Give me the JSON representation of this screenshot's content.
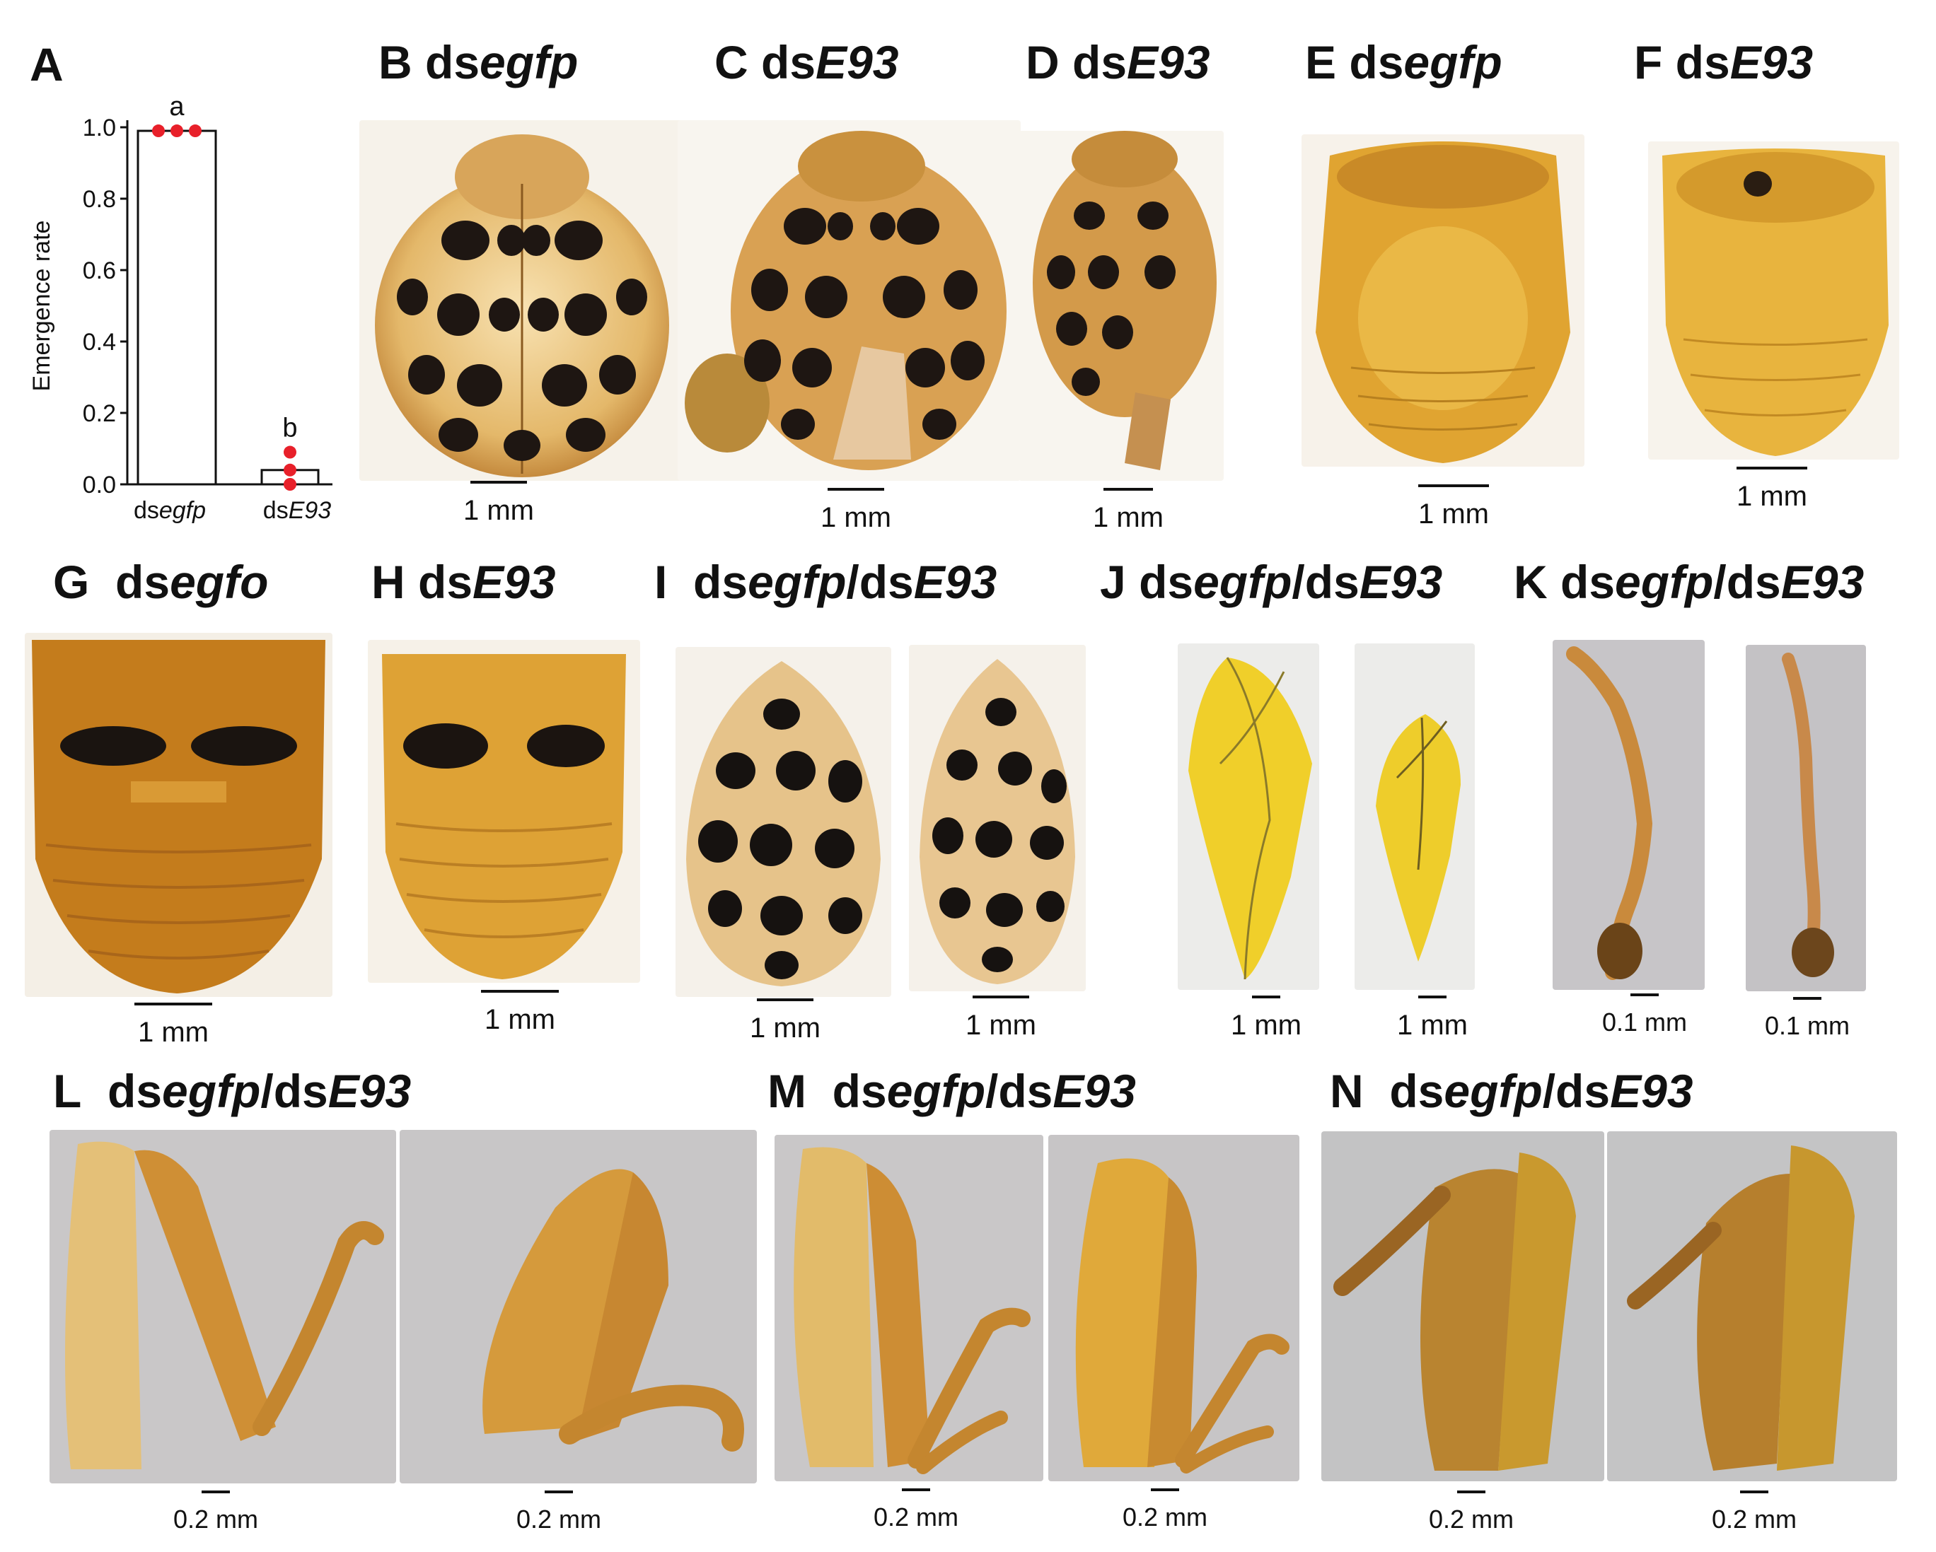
{
  "panel_A": {
    "letter": "A",
    "chart_data": {
      "type": "bar",
      "categories": [
        "dsegfp",
        "dsE93"
      ],
      "values": [
        0.99,
        0.04
      ],
      "points": [
        [
          0.99,
          0.99,
          0.99
        ],
        [
          0.09,
          0.04,
          0.0
        ]
      ],
      "significance": [
        "a",
        "b"
      ],
      "ylabel": "Emergence rate",
      "ylim": [
        0,
        1.0
      ],
      "yticks": [
        "0.0",
        "0.2",
        "0.4",
        "0.6",
        "0.8",
        "1.0"
      ],
      "point_color": "#e8202a"
    }
  },
  "panels": {
    "B": {
      "letter": "B",
      "pre": "ds",
      "it": "egfp"
    },
    "C": {
      "letter": "C",
      "pre": "ds",
      "it": "E93"
    },
    "D": {
      "letter": "D",
      "pre": "ds",
      "it": "E93"
    },
    "E": {
      "letter": "E",
      "pre": "ds",
      "it": "egfp"
    },
    "F": {
      "letter": "F",
      "pre": "ds",
      "it": "E93"
    },
    "G": {
      "letter": "G",
      "pre": "ds",
      "it": "egfo"
    },
    "H": {
      "letter": "H",
      "pre": "ds",
      "it": "E93"
    },
    "I": {
      "letter": "I",
      "pre": "ds",
      "it": "egfp",
      "sep": "/ds",
      "it2": "E93"
    },
    "J": {
      "letter": "J",
      "pre": "ds",
      "it": "egfp",
      "sep": "/ds",
      "it2": "E93"
    },
    "K": {
      "letter": "K",
      "pre": "ds",
      "it": "egfp",
      "sep": "/ds",
      "it2": "E93"
    },
    "L": {
      "letter": "L",
      "pre": "ds",
      "it": "egfp",
      "sep": "/ds",
      "it2": "E93"
    },
    "M": {
      "letter": "M",
      "pre": "ds",
      "it": "egfp",
      "sep": "/ds",
      "it2": "E93"
    },
    "N": {
      "letter": "N",
      "pre": "ds",
      "it": "egfp",
      "sep": "/ds",
      "it2": "E93"
    }
  },
  "scale_labels": {
    "mm1": "1 mm",
    "mm01": "0.1 mm",
    "mm02": "0.2 mm"
  }
}
